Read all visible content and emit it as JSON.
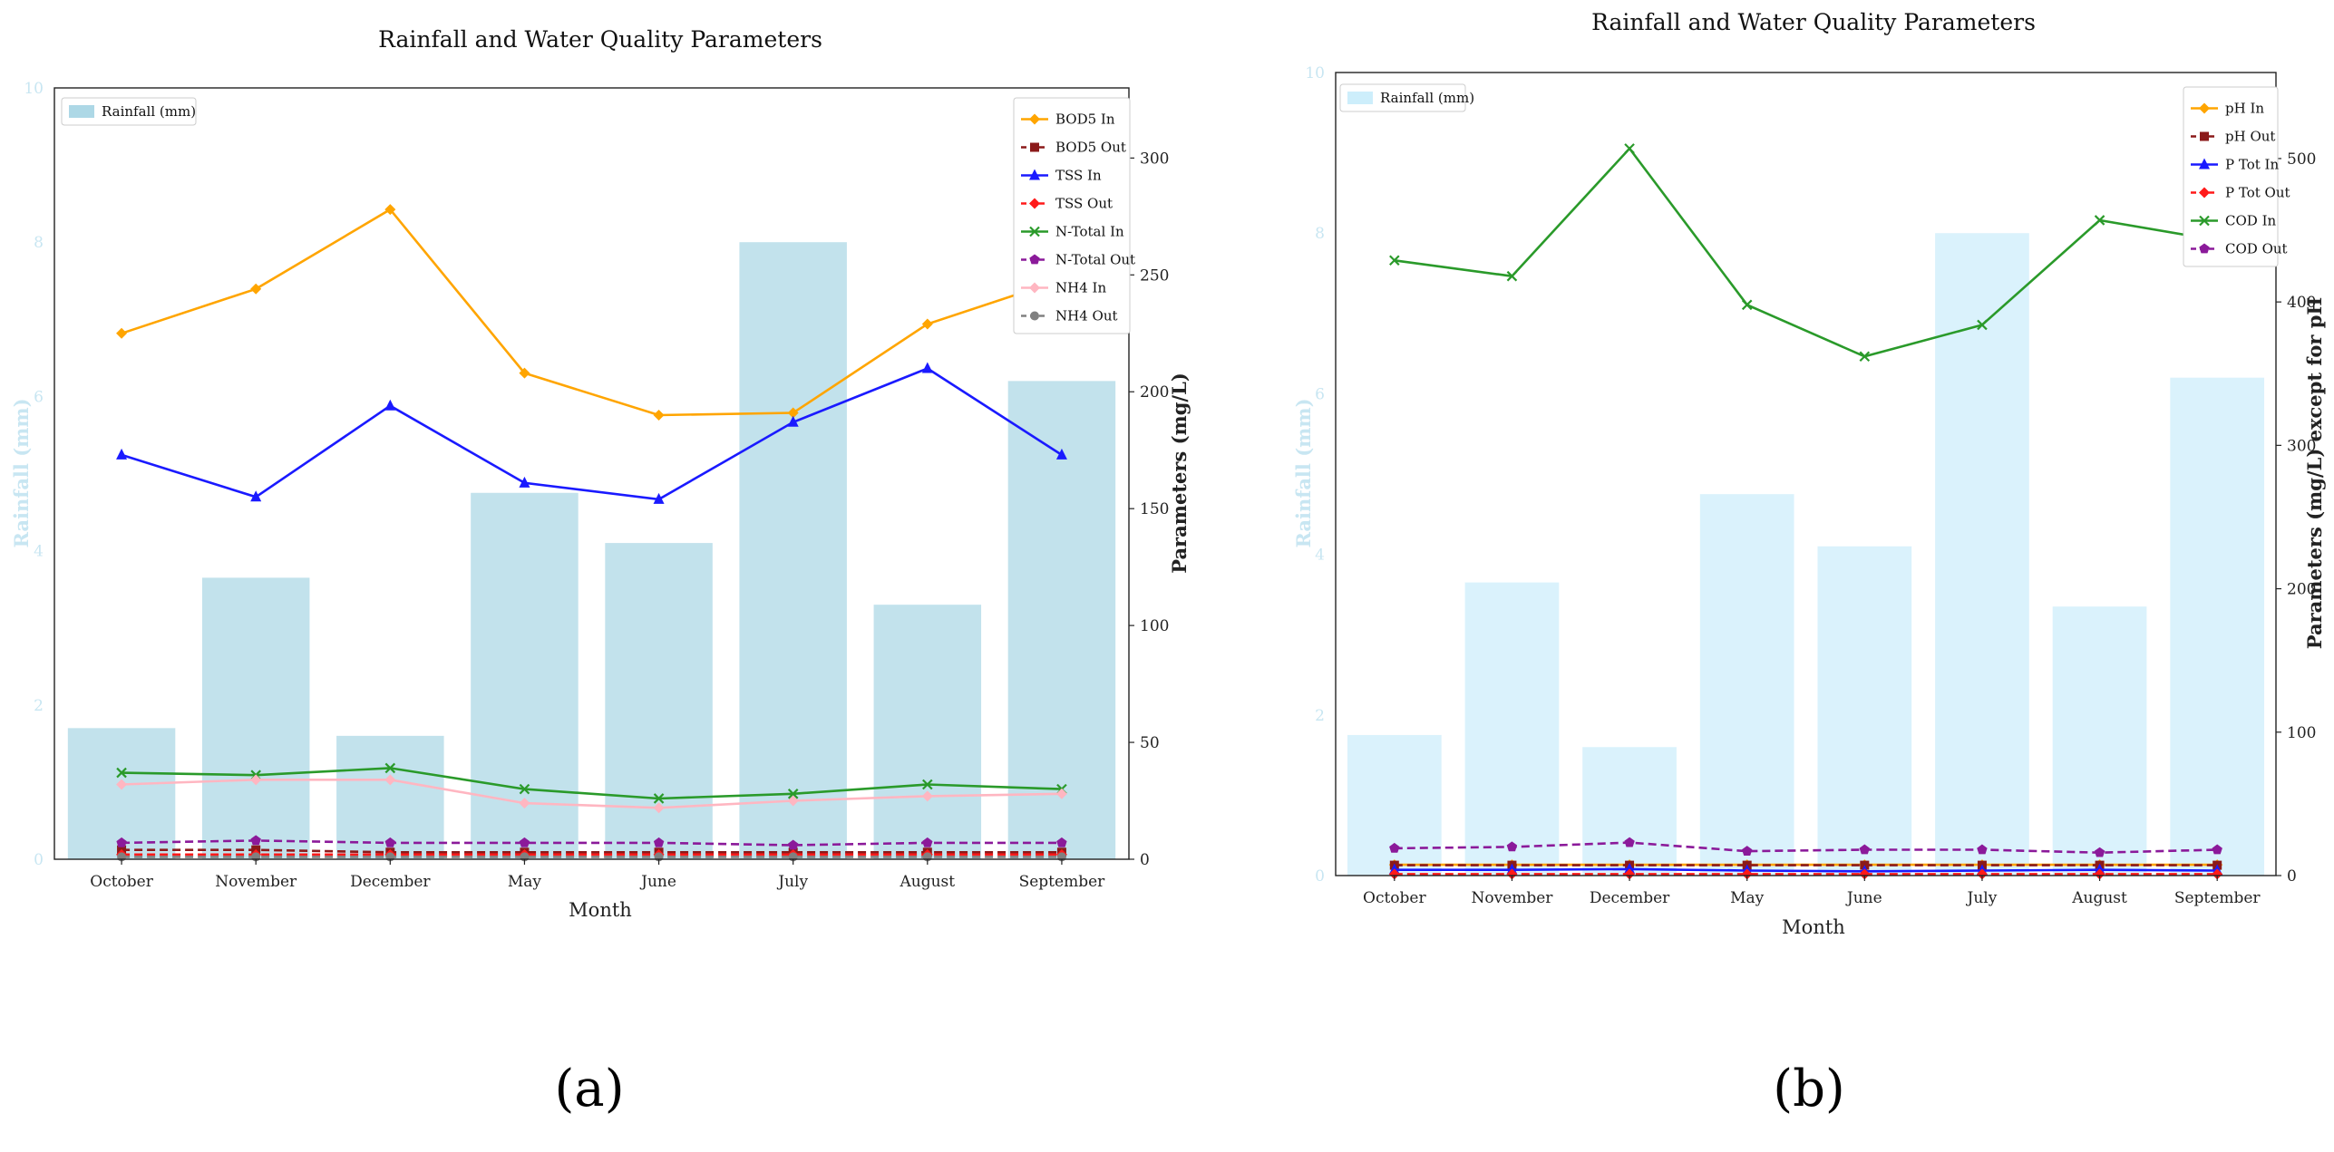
{
  "panel_labels": {
    "a": "(a)",
    "b": "(b)"
  },
  "chart_data": [
    {
      "type": "bar+line",
      "title": "Rainfall and Water Quality Parameters",
      "xlabel": "Month",
      "ylabel_left": "Rainfall (mm)",
      "ylabel_right": "Parameters (mg/L)",
      "categories": [
        "October",
        "November",
        "December",
        "May",
        "June",
        "July",
        "August",
        "September"
      ],
      "ylim_left": [
        0,
        10
      ],
      "yticks_left": [
        0,
        2,
        4,
        6,
        8,
        10
      ],
      "ylim_right": [
        0,
        330
      ],
      "yticks_right": [
        0,
        50,
        100,
        150,
        200,
        250,
        300
      ],
      "bars": {
        "name": "Rainfall (mm)",
        "color": "#add8e6",
        "values": [
          1.7,
          3.65,
          1.6,
          4.75,
          4.1,
          8.0,
          3.3,
          6.2
        ]
      },
      "bar_legend_position": "top-left",
      "line_legend_position": "top-right",
      "series": [
        {
          "name": "BOD5 In",
          "color": "#ffa500",
          "dashed": false,
          "marker": "diamond",
          "values": [
            225,
            244,
            278,
            208,
            190,
            191,
            229,
            248
          ]
        },
        {
          "name": "BOD5 Out",
          "color": "#8b1a1a",
          "dashed": true,
          "marker": "square",
          "values": [
            4,
            4,
            3,
            3,
            3,
            3,
            3,
            3
          ]
        },
        {
          "name": "TSS In",
          "color": "#1a1aff",
          "dashed": false,
          "marker": "triangle",
          "values": [
            173,
            155,
            194,
            161,
            154,
            187,
            210,
            173
          ]
        },
        {
          "name": "TSS Out",
          "color": "#ff1a1a",
          "dashed": true,
          "marker": "diamond",
          "values": [
            2,
            2,
            2,
            2,
            2,
            2,
            2,
            2
          ]
        },
        {
          "name": "N-Total In",
          "color": "#2a9a2a",
          "dashed": false,
          "marker": "x",
          "values": [
            37,
            36,
            39,
            30,
            26,
            28,
            32,
            30
          ]
        },
        {
          "name": "N-Total Out",
          "color": "#8b1a9a",
          "dashed": true,
          "marker": "pentagon",
          "values": [
            7,
            8,
            7,
            7,
            7,
            6,
            7,
            7
          ]
        },
        {
          "name": "NH4 In",
          "color": "#ffb6c1",
          "dashed": false,
          "marker": "diamond",
          "values": [
            32,
            34,
            34,
            24,
            22,
            25,
            27,
            28
          ]
        },
        {
          "name": "NH4 Out",
          "color": "#808080",
          "dashed": true,
          "marker": "circle",
          "values": [
            1,
            1,
            1,
            1,
            1,
            1,
            1,
            1
          ]
        }
      ]
    },
    {
      "type": "bar+line",
      "title": "Rainfall and Water Quality Parameters",
      "xlabel": "Month",
      "ylabel_left": "Rainfall (mm)",
      "ylabel_right": "Parameters (mg/L) except for pH",
      "categories": [
        "October",
        "November",
        "December",
        "May",
        "June",
        "July",
        "August",
        "September"
      ],
      "ylim_left": [
        0,
        10
      ],
      "yticks_left": [
        0,
        2,
        4,
        6,
        8,
        10
      ],
      "ylim_right": [
        0,
        560
      ],
      "yticks_right": [
        0,
        100,
        200,
        300,
        400,
        500
      ],
      "bars": {
        "name": "Rainfall (mm)",
        "color": "#cdeefb",
        "values": [
          1.75,
          3.65,
          1.6,
          4.75,
          4.1,
          8.0,
          3.35,
          6.2
        ]
      },
      "bar_legend_position": "top-left",
      "line_legend_position": "top-right",
      "series": [
        {
          "name": "pH In",
          "color": "#ffa500",
          "dashed": false,
          "marker": "diamond",
          "values": [
            7.5,
            7.5,
            7.5,
            7.5,
            7.5,
            7.5,
            7.5,
            7.5
          ]
        },
        {
          "name": "pH Out",
          "color": "#8b1a1a",
          "dashed": true,
          "marker": "square",
          "values": [
            7.2,
            7.2,
            7.2,
            7.2,
            7.2,
            7.2,
            7.2,
            7.2
          ]
        },
        {
          "name": "P Tot In",
          "color": "#1a1aff",
          "dashed": false,
          "marker": "triangle",
          "values": [
            4,
            4,
            4.5,
            3.5,
            3,
            3.5,
            4,
            3.5
          ]
        },
        {
          "name": "P Tot Out",
          "color": "#ff1a1a",
          "dashed": true,
          "marker": "diamond",
          "values": [
            1,
            1,
            1,
            1,
            1,
            1,
            1,
            1
          ]
        },
        {
          "name": "COD In",
          "color": "#2a9a2a",
          "dashed": false,
          "marker": "x",
          "values": [
            429,
            418,
            507,
            398,
            362,
            384,
            457,
            443
          ]
        },
        {
          "name": "COD Out",
          "color": "#8b1a9a",
          "dashed": true,
          "marker": "pentagon",
          "values": [
            19,
            20,
            23,
            17,
            18,
            18,
            16,
            18
          ]
        }
      ]
    }
  ]
}
